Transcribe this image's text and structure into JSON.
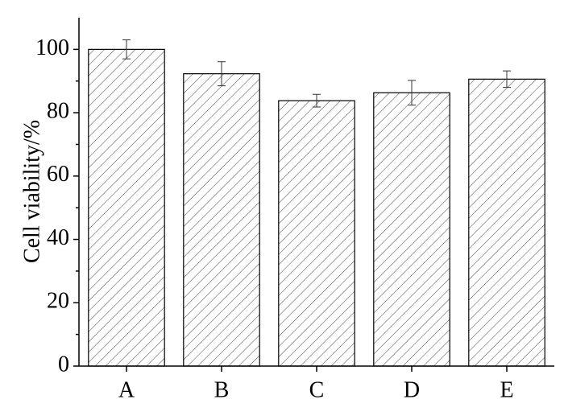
{
  "chart_data": {
    "type": "bar",
    "y_label": "Cell viability/%",
    "categories": [
      "A",
      "B",
      "C",
      "D",
      "E"
    ],
    "values": [
      100,
      92.3,
      83.8,
      86.3,
      90.6
    ],
    "errors": [
      3,
      3.8,
      2,
      3.9,
      2.6
    ],
    "color": "#ffffff",
    "ylim": [
      0,
      110
    ],
    "yticks": [
      0,
      20,
      40,
      60,
      80,
      100
    ],
    "minor_yticks": [
      10,
      30,
      50,
      70,
      90
    ],
    "grid": false
  }
}
